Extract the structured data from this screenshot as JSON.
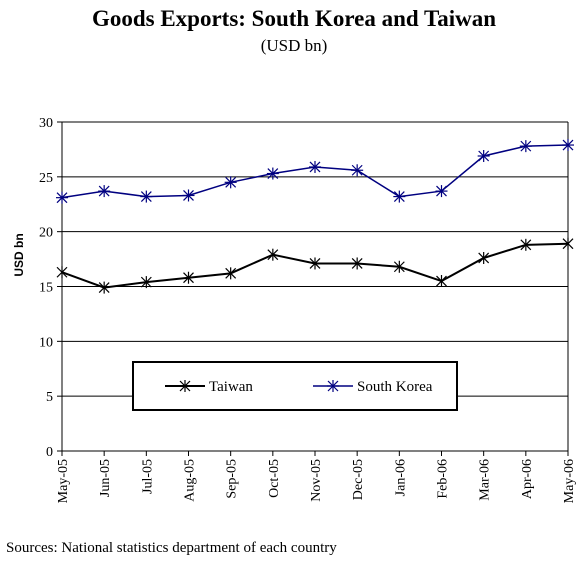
{
  "chart_data": {
    "type": "line",
    "title": "Goods Exports: South Korea and Taiwan",
    "subtitle": "(USD bn)",
    "ylabel": "USD bn",
    "ylim": [
      0,
      30
    ],
    "yticks": [
      0,
      5,
      10,
      15,
      20,
      25,
      30
    ],
    "grid": true,
    "legend_position": "lower-center",
    "categories": [
      "May-05",
      "Jun-05",
      "Jul-05",
      "Aug-05",
      "Sep-05",
      "Oct-05",
      "Nov-05",
      "Dec-05",
      "Jan-06",
      "Feb-06",
      "Mar-06",
      "Apr-06",
      "May-06"
    ],
    "series": [
      {
        "name": "Taiwan",
        "color": "#000000",
        "marker": "star",
        "values": [
          16.3,
          14.9,
          15.4,
          15.8,
          16.2,
          17.9,
          17.1,
          17.1,
          16.8,
          15.5,
          17.6,
          18.8,
          18.9
        ]
      },
      {
        "name": "South Korea",
        "color": "#000080",
        "marker": "asterisk",
        "values": [
          23.1,
          23.7,
          23.2,
          23.3,
          24.5,
          25.3,
          25.9,
          25.6,
          23.2,
          23.7,
          26.9,
          27.8,
          27.9
        ]
      }
    ]
  },
  "source": "Sources: National statistics department of each country"
}
